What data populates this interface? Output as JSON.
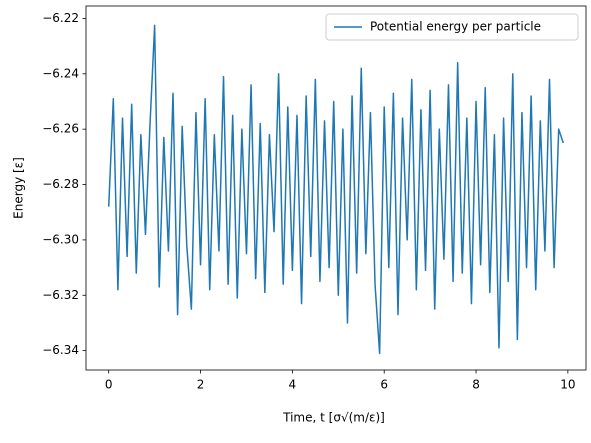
{
  "chart_data": {
    "type": "line",
    "xlabel": "Time, t [σ√(m/ε)]",
    "ylabel": "Energy [ε]",
    "legend": "upper right",
    "xlim": [
      -0.495,
      10.395
    ],
    "ylim": [
      -6.347,
      -6.2155
    ],
    "xticks": [
      0,
      2,
      4,
      6,
      8,
      10
    ],
    "yticks": [
      {
        "value": -6.34,
        "label": "−6.34"
      },
      {
        "value": -6.32,
        "label": "−6.32"
      },
      {
        "value": -6.3,
        "label": "−6.30"
      },
      {
        "value": -6.28,
        "label": "−6.28"
      },
      {
        "value": -6.26,
        "label": "−6.26"
      },
      {
        "value": -6.24,
        "label": "−6.24"
      },
      {
        "value": -6.22,
        "label": "−6.22"
      }
    ],
    "x": [
      0,
      0.1,
      0.2,
      0.3,
      0.4,
      0.5,
      0.6,
      0.7,
      0.8,
      0.9,
      1,
      1.1,
      1.2,
      1.3,
      1.4,
      1.5,
      1.6,
      1.7,
      1.8,
      1.9,
      2,
      2.1,
      2.2,
      2.3,
      2.4,
      2.5,
      2.6,
      2.7,
      2.8,
      2.9,
      3,
      3.1,
      3.2,
      3.3,
      3.4,
      3.5,
      3.6,
      3.7,
      3.8,
      3.9,
      4,
      4.1,
      4.2,
      4.3,
      4.4,
      4.5,
      4.6,
      4.7,
      4.8,
      4.9,
      5,
      5.1,
      5.2,
      5.3,
      5.4,
      5.5,
      5.6,
      5.7,
      5.8,
      5.9,
      6,
      6.1,
      6.2,
      6.3,
      6.4,
      6.5,
      6.6,
      6.7,
      6.8,
      6.9,
      7,
      7.1,
      7.2,
      7.3,
      7.4,
      7.5,
      7.6,
      7.7,
      7.8,
      7.9,
      8,
      8.1,
      8.2,
      8.3,
      8.4,
      8.5,
      8.6,
      8.7,
      8.8,
      8.9,
      9,
      9.1,
      9.2,
      9.3,
      9.4,
      9.5,
      9.6,
      9.7,
      9.8,
      9.9
    ],
    "series": [
      {
        "name": "Potential energy per particle",
        "color": "#1f77b4",
        "values": [
          -6.288,
          -6.249,
          -6.318,
          -6.256,
          -6.306,
          -6.251,
          -6.312,
          -6.262,
          -6.298,
          -6.258,
          -6.2225,
          -6.317,
          -6.263,
          -6.304,
          -6.247,
          -6.327,
          -6.259,
          -6.302,
          -6.325,
          -6.254,
          -6.309,
          -6.249,
          -6.318,
          -6.262,
          -6.304,
          -6.241,
          -6.316,
          -6.255,
          -6.321,
          -6.26,
          -6.305,
          -6.244,
          -6.314,
          -6.258,
          -6.319,
          -6.262,
          -6.297,
          -6.24,
          -6.316,
          -6.252,
          -6.311,
          -6.255,
          -6.323,
          -6.248,
          -6.306,
          -6.242,
          -6.315,
          -6.257,
          -6.31,
          -6.25,
          -6.32,
          -6.26,
          -6.33,
          -6.248,
          -6.312,
          -6.238,
          -6.305,
          -6.254,
          -6.316,
          -6.341,
          -6.252,
          -6.31,
          -6.247,
          -6.327,
          -6.256,
          -6.3,
          -6.242,
          -6.318,
          -6.253,
          -6.311,
          -6.246,
          -6.325,
          -6.26,
          -6.307,
          -6.244,
          -6.315,
          -6.236,
          -6.312,
          -6.256,
          -6.323,
          -6.25,
          -6.309,
          -6.245,
          -6.319,
          -6.262,
          -6.339,
          -6.256,
          -6.315,
          -6.24,
          -6.336,
          -6.254,
          -6.31,
          -6.248,
          -6.318,
          -6.257,
          -6.304,
          -6.242,
          -6.31,
          -6.26,
          -6.265
        ]
      }
    ]
  }
}
